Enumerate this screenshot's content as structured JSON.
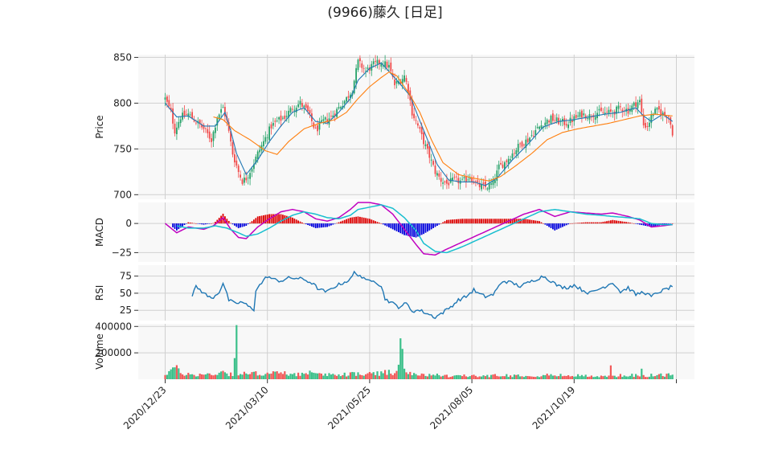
{
  "chart_data": {
    "type": "candlestick",
    "title": "(9966)藤久  [日足]",
    "colors": {
      "up": "#26a269",
      "down": "#f04b4b",
      "ma_short": "#1f77b4",
      "ma_long": "#ff7f0e",
      "macd": "#c000c0",
      "signal": "#17becf",
      "hist_pos": "#dd0000",
      "hist_neg": "#0000dd",
      "rsi": "#1f77b4",
      "panel_bg": "#f8f8f8",
      "grid": "#d0d0d0"
    },
    "x_ticks": [
      "2020/12/23",
      "2021/03/10",
      "2021/05/25",
      "2021/08/05",
      "2021/10/19",
      ""
    ],
    "price": {
      "ylabel": "Price",
      "ylim": [
        695,
        853
      ],
      "yticks": [
        "700",
        "750",
        "800",
        "850"
      ],
      "close_anchors": [
        [
          0,
          805
        ],
        [
          3,
          790
        ],
        [
          5,
          770
        ],
        [
          8,
          785
        ],
        [
          12,
          788
        ],
        [
          16,
          780
        ],
        [
          20,
          772
        ],
        [
          24,
          760
        ],
        [
          27,
          785
        ],
        [
          30,
          795
        ],
        [
          32,
          780
        ],
        [
          35,
          745
        ],
        [
          38,
          725
        ],
        [
          40,
          715
        ],
        [
          42,
          718
        ],
        [
          45,
          730
        ],
        [
          48,
          745
        ],
        [
          52,
          762
        ],
        [
          55,
          775
        ],
        [
          58,
          780
        ],
        [
          62,
          785
        ],
        [
          66,
          795
        ],
        [
          70,
          800
        ],
        [
          74,
          790
        ],
        [
          78,
          770
        ],
        [
          82,
          780
        ],
        [
          86,
          785
        ],
        [
          90,
          795
        ],
        [
          94,
          805
        ],
        [
          97,
          815
        ],
        [
          100,
          845
        ],
        [
          104,
          835
        ],
        [
          108,
          842
        ],
        [
          112,
          845
        ],
        [
          116,
          840
        ],
        [
          119,
          820
        ],
        [
          122,
          825
        ],
        [
          124,
          830
        ],
        [
          126,
          815
        ],
        [
          128,
          790
        ],
        [
          131,
          775
        ],
        [
          134,
          758
        ],
        [
          137,
          742
        ],
        [
          140,
          725
        ],
        [
          143,
          716
        ],
        [
          146,
          712
        ],
        [
          150,
          716
        ],
        [
          154,
          714
        ],
        [
          158,
          720
        ],
        [
          162,
          710
        ],
        [
          166,
          708
        ],
        [
          170,
          712
        ],
        [
          173,
          730
        ],
        [
          176,
          735
        ],
        [
          180,
          745
        ],
        [
          184,
          755
        ],
        [
          188,
          760
        ],
        [
          192,
          770
        ],
        [
          196,
          778
        ],
        [
          200,
          783
        ],
        [
          204,
          780
        ],
        [
          208,
          778
        ],
        [
          212,
          783
        ],
        [
          216,
          788
        ],
        [
          220,
          786
        ],
        [
          224,
          790
        ],
        [
          228,
          789
        ],
        [
          232,
          790
        ],
        [
          236,
          795
        ],
        [
          240,
          792
        ],
        [
          244,
          800
        ],
        [
          246,
          802
        ],
        [
          248,
          776
        ],
        [
          250,
          775
        ],
        [
          253,
          790
        ],
        [
          256,
          792
        ],
        [
          258,
          788
        ],
        [
          261,
          786
        ],
        [
          263,
          768
        ]
      ],
      "ma_short_anchors": [
        [
          0,
          800
        ],
        [
          6,
          785
        ],
        [
          12,
          786
        ],
        [
          20,
          775
        ],
        [
          26,
          775
        ],
        [
          31,
          790
        ],
        [
          34,
          770
        ],
        [
          37,
          745
        ],
        [
          42,
          722
        ],
        [
          48,
          738
        ],
        [
          54,
          758
        ],
        [
          60,
          775
        ],
        [
          66,
          790
        ],
        [
          72,
          795
        ],
        [
          78,
          780
        ],
        [
          84,
          778
        ],
        [
          90,
          790
        ],
        [
          96,
          805
        ],
        [
          100,
          825
        ],
        [
          106,
          838
        ],
        [
          112,
          844
        ],
        [
          118,
          830
        ],
        [
          123,
          818
        ],
        [
          127,
          808
        ],
        [
          131,
          786
        ],
        [
          136,
          760
        ],
        [
          141,
          733
        ],
        [
          147,
          716
        ],
        [
          153,
          714
        ],
        [
          160,
          714
        ],
        [
          166,
          710
        ],
        [
          172,
          718
        ],
        [
          180,
          738
        ],
        [
          188,
          755
        ],
        [
          196,
          774
        ],
        [
          204,
          780
        ],
        [
          212,
          782
        ],
        [
          220,
          785
        ],
        [
          228,
          788
        ],
        [
          236,
          790
        ],
        [
          244,
          795
        ],
        [
          248,
          786
        ],
        [
          252,
          780
        ],
        [
          258,
          788
        ],
        [
          263,
          780
        ]
      ],
      "ma_long_anchors": [
        [
          25,
          785
        ],
        [
          30,
          782
        ],
        [
          36,
          770
        ],
        [
          44,
          760
        ],
        [
          52,
          748
        ],
        [
          58,
          744
        ],
        [
          64,
          758
        ],
        [
          72,
          772
        ],
        [
          80,
          778
        ],
        [
          88,
          782
        ],
        [
          94,
          790
        ],
        [
          100,
          805
        ],
        [
          106,
          818
        ],
        [
          112,
          828
        ],
        [
          116,
          834
        ],
        [
          120,
          830
        ],
        [
          126,
          812
        ],
        [
          132,
          790
        ],
        [
          138,
          760
        ],
        [
          144,
          735
        ],
        [
          152,
          722
        ],
        [
          160,
          718
        ],
        [
          168,
          715
        ],
        [
          174,
          720
        ],
        [
          182,
          732
        ],
        [
          190,
          745
        ],
        [
          198,
          760
        ],
        [
          206,
          768
        ],
        [
          214,
          772
        ],
        [
          222,
          775
        ],
        [
          230,
          778
        ],
        [
          238,
          782
        ],
        [
          246,
          786
        ],
        [
          254,
          788
        ],
        [
          263,
          786
        ]
      ]
    },
    "macd": {
      "ylabel": "MACD",
      "ylim": [
        -33,
        18
      ],
      "yticks": [
        "0",
        "−25"
      ],
      "macd_anchors": [
        [
          0,
          0
        ],
        [
          6,
          -8
        ],
        [
          12,
          -3
        ],
        [
          20,
          -5
        ],
        [
          25,
          -2
        ],
        [
          30,
          5
        ],
        [
          34,
          -5
        ],
        [
          38,
          -12
        ],
        [
          42,
          -13
        ],
        [
          48,
          -3
        ],
        [
          54,
          4
        ],
        [
          60,
          10
        ],
        [
          66,
          12
        ],
        [
          72,
          10
        ],
        [
          78,
          4
        ],
        [
          84,
          2
        ],
        [
          90,
          5
        ],
        [
          96,
          12
        ],
        [
          100,
          18
        ],
        [
          106,
          18
        ],
        [
          112,
          16
        ],
        [
          118,
          8
        ],
        [
          124,
          -5
        ],
        [
          130,
          -18
        ],
        [
          134,
          -26
        ],
        [
          140,
          -27
        ],
        [
          146,
          -22
        ],
        [
          154,
          -16
        ],
        [
          162,
          -10
        ],
        [
          170,
          -4
        ],
        [
          178,
          2
        ],
        [
          186,
          8
        ],
        [
          194,
          12
        ],
        [
          202,
          6
        ],
        [
          210,
          10
        ],
        [
          218,
          9
        ],
        [
          226,
          8
        ],
        [
          232,
          9
        ],
        [
          240,
          6
        ],
        [
          246,
          3
        ],
        [
          252,
          -3
        ],
        [
          258,
          -2
        ],
        [
          263,
          -1
        ]
      ],
      "signal_anchors": [
        [
          6,
          -2
        ],
        [
          12,
          -4
        ],
        [
          20,
          -4
        ],
        [
          26,
          -2
        ],
        [
          32,
          -4
        ],
        [
          38,
          -8
        ],
        [
          42,
          -11
        ],
        [
          48,
          -9
        ],
        [
          54,
          -4
        ],
        [
          60,
          2
        ],
        [
          66,
          7
        ],
        [
          72,
          10
        ],
        [
          78,
          8
        ],
        [
          84,
          5
        ],
        [
          90,
          4
        ],
        [
          96,
          7
        ],
        [
          100,
          12
        ],
        [
          106,
          14
        ],
        [
          112,
          16
        ],
        [
          118,
          13
        ],
        [
          124,
          5
        ],
        [
          130,
          -6
        ],
        [
          134,
          -17
        ],
        [
          140,
          -24
        ],
        [
          146,
          -25
        ],
        [
          154,
          -20
        ],
        [
          162,
          -14
        ],
        [
          170,
          -8
        ],
        [
          178,
          -2
        ],
        [
          186,
          4
        ],
        [
          194,
          10
        ],
        [
          202,
          12
        ],
        [
          210,
          10
        ],
        [
          218,
          8
        ],
        [
          226,
          7
        ],
        [
          232,
          6
        ],
        [
          240,
          5
        ],
        [
          246,
          4
        ],
        [
          252,
          0
        ],
        [
          258,
          -1
        ],
        [
          263,
          -1
        ]
      ]
    },
    "rsi": {
      "ylabel": "RSI",
      "ylim": [
        10,
        91
      ],
      "yticks": [
        "25",
        "50",
        "75"
      ],
      "anchors": [
        [
          14,
          45
        ],
        [
          16,
          60
        ],
        [
          18,
          55
        ],
        [
          21,
          48
        ],
        [
          24,
          42
        ],
        [
          28,
          52
        ],
        [
          30,
          65
        ],
        [
          33,
          40
        ],
        [
          36,
          35
        ],
        [
          40,
          37
        ],
        [
          44,
          29
        ],
        [
          46,
          26
        ],
        [
          47,
          55
        ],
        [
          50,
          65
        ],
        [
          53,
          75
        ],
        [
          56,
          70
        ],
        [
          60,
          68
        ],
        [
          64,
          72
        ],
        [
          68,
          72
        ],
        [
          72,
          70
        ],
        [
          76,
          65
        ],
        [
          80,
          55
        ],
        [
          84,
          52
        ],
        [
          88,
          60
        ],
        [
          92,
          65
        ],
        [
          96,
          70
        ],
        [
          98,
          80
        ],
        [
          101,
          76
        ],
        [
          104,
          68
        ],
        [
          108,
          70
        ],
        [
          112,
          60
        ],
        [
          114,
          42
        ],
        [
          118,
          35
        ],
        [
          121,
          30
        ],
        [
          125,
          35
        ],
        [
          128,
          24
        ],
        [
          132,
          25
        ],
        [
          136,
          20
        ],
        [
          140,
          15
        ],
        [
          144,
          22
        ],
        [
          148,
          30
        ],
        [
          152,
          40
        ],
        [
          156,
          45
        ],
        [
          160,
          55
        ],
        [
          162,
          50
        ],
        [
          166,
          45
        ],
        [
          170,
          48
        ],
        [
          175,
          68
        ],
        [
          180,
          65
        ],
        [
          184,
          60
        ],
        [
          188,
          65
        ],
        [
          192,
          70
        ],
        [
          196,
          75
        ],
        [
          200,
          68
        ],
        [
          204,
          60
        ],
        [
          208,
          58
        ],
        [
          212,
          62
        ],
        [
          216,
          55
        ],
        [
          220,
          50
        ],
        [
          224,
          55
        ],
        [
          228,
          60
        ],
        [
          232,
          66
        ],
        [
          236,
          52
        ],
        [
          240,
          58
        ],
        [
          244,
          48
        ],
        [
          248,
          52
        ],
        [
          252,
          45
        ],
        [
          256,
          52
        ],
        [
          259,
          55
        ],
        [
          263,
          60
        ]
      ]
    },
    "volume": {
      "ylabel": "Volume",
      "ylim": [
        0,
        420000
      ],
      "yticks": [
        "200000",
        "400000"
      ],
      "base_anchors": [
        [
          0,
          40000
        ],
        [
          5,
          90000
        ],
        [
          8,
          45000
        ],
        [
          14,
          35000
        ],
        [
          20,
          35000
        ],
        [
          26,
          40000
        ],
        [
          30,
          60000
        ],
        [
          33,
          40000
        ],
        [
          40,
          40000
        ],
        [
          50,
          45000
        ],
        [
          60,
          45000
        ],
        [
          70,
          40000
        ],
        [
          80,
          35000
        ],
        [
          90,
          35000
        ],
        [
          100,
          40000
        ],
        [
          110,
          40000
        ],
        [
          116,
          50000
        ],
        [
          122,
          45000
        ],
        [
          128,
          40000
        ],
        [
          134,
          30000
        ],
        [
          140,
          30000
        ],
        [
          150,
          25000
        ],
        [
          160,
          25000
        ],
        [
          170,
          28000
        ],
        [
          180,
          30000
        ],
        [
          190,
          30000
        ],
        [
          200,
          30000
        ],
        [
          210,
          28000
        ],
        [
          220,
          25000
        ],
        [
          230,
          25000
        ],
        [
          240,
          30000
        ],
        [
          250,
          30000
        ],
        [
          260,
          32000
        ],
        [
          263,
          35000
        ]
      ],
      "peaks": [
        [
          36,
          160000
        ],
        [
          37,
          410000
        ],
        [
          75,
          65000
        ],
        [
          110,
          60000
        ],
        [
          114,
          70000
        ],
        [
          121,
          110000
        ],
        [
          122,
          310000
        ],
        [
          123,
          230000
        ],
        [
          124,
          80000
        ],
        [
          231,
          105000
        ],
        [
          247,
          80000
        ]
      ]
    }
  }
}
